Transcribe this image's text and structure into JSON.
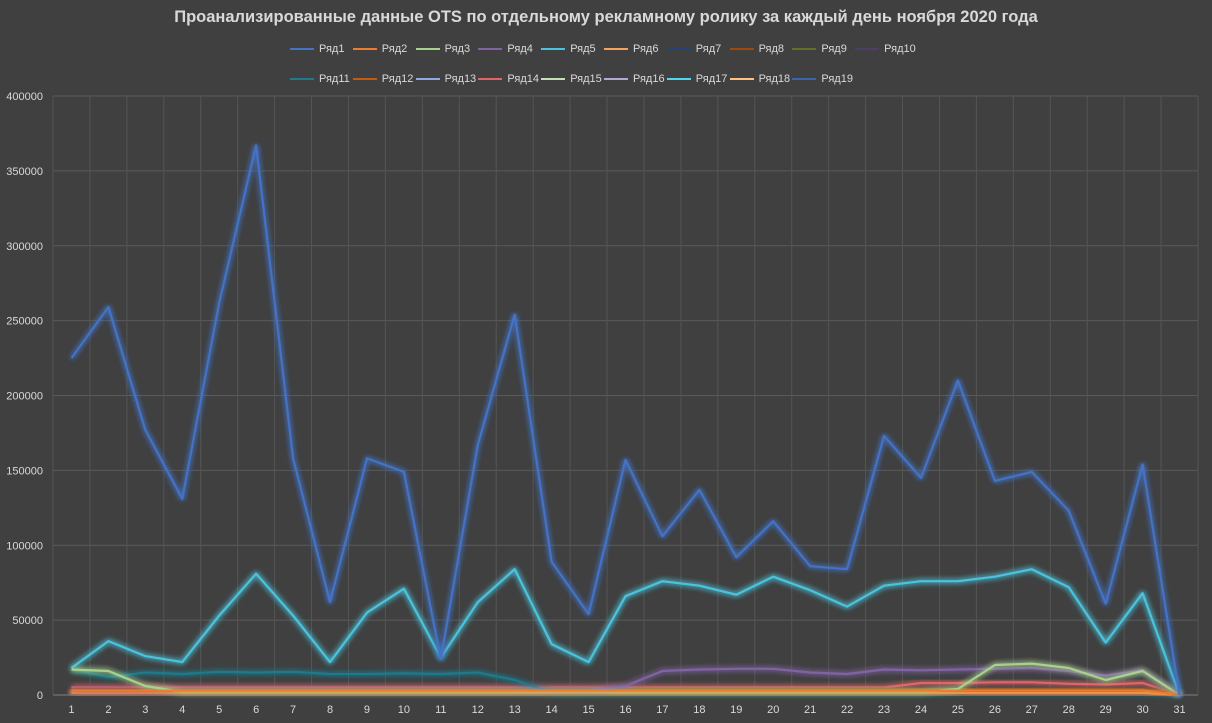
{
  "chart_data": {
    "type": "line",
    "title": "Проанализированные данные OTS по отдельному рекламному ролику за каждый день ноября 2020 года",
    "xlabel": "",
    "ylabel": "",
    "x": [
      1,
      2,
      3,
      4,
      5,
      6,
      7,
      8,
      9,
      10,
      11,
      12,
      13,
      14,
      15,
      16,
      17,
      18,
      19,
      20,
      21,
      22,
      23,
      24,
      25,
      26,
      27,
      28,
      29,
      30,
      31
    ],
    "ylim": [
      0,
      400000
    ],
    "yticks": [
      "0",
      "50000",
      "100000",
      "150000",
      "200000",
      "250000",
      "300000",
      "350000",
      "400000"
    ],
    "grid": true,
    "legend_position": "top",
    "series": [
      {
        "name": "Ряд1",
        "color": "#4472c4",
        "values": [
          225000,
          259000,
          177000,
          131000,
          262000,
          367000,
          158000,
          62000,
          158000,
          149000,
          24000,
          167000,
          254000,
          89000,
          54000,
          157000,
          106000,
          137000,
          92000,
          116000,
          86000,
          84000,
          173000,
          145000,
          210000,
          143000,
          149000,
          123000,
          61000,
          154000,
          0
        ]
      },
      {
        "name": "Ряд2",
        "color": "#ed7d31",
        "values": [
          3000,
          3000,
          3000,
          3000,
          3000,
          3000,
          3000,
          3000,
          3000,
          3000,
          3000,
          3000,
          3000,
          3000,
          3000,
          3000,
          3000,
          3000,
          3000,
          3000,
          3000,
          3000,
          3000,
          3000,
          3000,
          3000,
          3000,
          3000,
          3000,
          3000,
          0
        ]
      },
      {
        "name": "Ряд3",
        "color": "#a9d18e",
        "values": [
          17000,
          16000,
          6000,
          2000,
          2000,
          2000,
          2000,
          2000,
          2000,
          2000,
          2000,
          2000,
          2000,
          2000,
          2000,
          2000,
          2000,
          2000,
          2000,
          2000,
          2000,
          2000,
          2000,
          2000,
          4000,
          20000,
          21000,
          18000,
          10000,
          16000,
          0
        ]
      },
      {
        "name": "Ряд4",
        "color": "#8064a2",
        "values": [
          3000,
          3000,
          3000,
          3000,
          3000,
          3000,
          3000,
          3000,
          3000,
          3000,
          3000,
          3000,
          3000,
          3000,
          3000,
          6000,
          16000,
          17000,
          17500,
          17500,
          15000,
          14000,
          17000,
          16500,
          17000,
          17500,
          18000,
          16000,
          13000,
          16500,
          0
        ]
      },
      {
        "name": "Ряд5",
        "color": "#4bc3dc",
        "values": [
          18000,
          36000,
          26000,
          22000,
          53000,
          81000,
          53000,
          22000,
          55000,
          71000,
          25000,
          62000,
          84000,
          34000,
          22000,
          66000,
          76000,
          73000,
          67000,
          79000,
          70000,
          59000,
          73000,
          76000,
          76000,
          79000,
          84000,
          72000,
          35000,
          68000,
          0
        ]
      },
      {
        "name": "Ряд6",
        "color": "#f4a460",
        "values": [
          1500,
          1500,
          1500,
          1500,
          1500,
          1500,
          1500,
          1500,
          1500,
          1500,
          1500,
          1500,
          1500,
          1500,
          1500,
          1500,
          1500,
          1500,
          1500,
          1500,
          1500,
          1500,
          1500,
          1500,
          1500,
          1500,
          1500,
          1500,
          1500,
          1500,
          0
        ]
      },
      {
        "name": "Ряд7",
        "color": "#264478",
        "values": [
          1000,
          1000,
          1000,
          1000,
          1000,
          1000,
          1000,
          1000,
          1000,
          1000,
          1000,
          1000,
          1000,
          1000,
          1000,
          1000,
          1000,
          1000,
          1000,
          1000,
          1000,
          1000,
          1000,
          1000,
          1000,
          1000,
          1000,
          1000,
          1000,
          1000,
          0
        ]
      },
      {
        "name": "Ряд8",
        "color": "#9e480e",
        "values": [
          2000,
          2000,
          2000,
          2000,
          2000,
          2000,
          2000,
          2000,
          2000,
          2000,
          2000,
          2000,
          2000,
          2000,
          2000,
          2000,
          2000,
          2000,
          2000,
          2000,
          2000,
          2000,
          2000,
          2000,
          2000,
          2000,
          2000,
          2000,
          2000,
          2000,
          0
        ]
      },
      {
        "name": "Ряд9",
        "color": "#636f2d",
        "values": [
          2500,
          2500,
          2500,
          2500,
          2500,
          2500,
          2500,
          2500,
          2500,
          2500,
          2500,
          2500,
          2500,
          2500,
          2500,
          2500,
          2500,
          2500,
          2500,
          2500,
          2500,
          2500,
          2500,
          2500,
          2500,
          2500,
          2500,
          2500,
          2500,
          2500,
          0
        ]
      },
      {
        "name": "Ряд10",
        "color": "#4e3d6b",
        "values": [
          1500,
          1500,
          1500,
          1500,
          1500,
          1500,
          1500,
          1500,
          1500,
          1500,
          1500,
          1500,
          1500,
          1500,
          1500,
          1500,
          1500,
          1500,
          1500,
          1500,
          1500,
          1500,
          1500,
          1500,
          1500,
          1500,
          1500,
          1500,
          1500,
          1500,
          0
        ]
      },
      {
        "name": "Ряд11",
        "color": "#1f7a8c",
        "values": [
          17000,
          12000,
          15000,
          14000,
          15500,
          15000,
          15500,
          14000,
          14000,
          14500,
          14000,
          15000,
          10000,
          1500,
          1500,
          1500,
          1500,
          1500,
          1500,
          1500,
          1500,
          1500,
          1500,
          1500,
          1500,
          1500,
          1500,
          1500,
          1500,
          1500,
          0
        ]
      },
      {
        "name": "Ряд12",
        "color": "#c55a11",
        "values": [
          4000,
          4000,
          4000,
          4000,
          4000,
          4000,
          4000,
          4000,
          4000,
          4000,
          4000,
          4000,
          4000,
          4000,
          4000,
          4000,
          4000,
          4000,
          4000,
          4000,
          4000,
          4000,
          4000,
          4000,
          4000,
          4000,
          4000,
          4000,
          4000,
          4000,
          0
        ]
      },
      {
        "name": "Ряд13",
        "color": "#8faadc",
        "values": [
          2000,
          2000,
          2000,
          2000,
          2000,
          2000,
          2000,
          2000,
          2000,
          2000,
          2000,
          2000,
          2000,
          2000,
          2000,
          2000,
          2000,
          2000,
          2000,
          2000,
          2000,
          2000,
          2000,
          2000,
          2000,
          2000,
          2000,
          2000,
          2000,
          2000,
          0
        ]
      },
      {
        "name": "Ряд14",
        "color": "#e06666",
        "values": [
          5000,
          5000,
          5000,
          5000,
          5000,
          5000,
          5000,
          5000,
          5000,
          5000,
          5000,
          5000,
          5000,
          5000,
          5000,
          5000,
          5000,
          5000,
          5000,
          5000,
          5000,
          5000,
          5000,
          8000,
          8000,
          8500,
          8500,
          7500,
          7000,
          8000,
          0
        ]
      },
      {
        "name": "Ряд15",
        "color": "#c5e0b4",
        "values": [
          3000,
          3000,
          3000,
          3000,
          3000,
          3000,
          3000,
          3000,
          3000,
          3000,
          3000,
          3000,
          3000,
          3000,
          3000,
          3000,
          3000,
          3000,
          3000,
          3000,
          3000,
          3000,
          3000,
          3000,
          3000,
          3000,
          3000,
          3000,
          3000,
          3000,
          0
        ]
      },
      {
        "name": "Ряд16",
        "color": "#b4a7d6",
        "values": [
          2500,
          2500,
          2500,
          2500,
          2500,
          2500,
          2500,
          2500,
          2500,
          2500,
          2500,
          2500,
          2500,
          2500,
          2500,
          2500,
          2500,
          2500,
          2500,
          2500,
          2500,
          2500,
          2500,
          2500,
          2500,
          2500,
          2500,
          2500,
          2500,
          2500,
          0
        ]
      },
      {
        "name": "Ряд17",
        "color": "#4fd8f0",
        "values": [
          500,
          500,
          500,
          500,
          500,
          500,
          500,
          500,
          500,
          500,
          500,
          500,
          500,
          500,
          500,
          500,
          500,
          500,
          500,
          500,
          500,
          500,
          500,
          500,
          500,
          500,
          500,
          500,
          500,
          500,
          0
        ]
      },
      {
        "name": "Ряд18",
        "color": "#ffc080",
        "values": [
          1000,
          1000,
          1000,
          1000,
          1000,
          1000,
          1000,
          1000,
          1000,
          1000,
          1000,
          1000,
          1000,
          1000,
          1000,
          1000,
          1000,
          1000,
          1000,
          1000,
          1000,
          1000,
          1000,
          1000,
          1000,
          1000,
          1000,
          1000,
          1000,
          1000,
          0
        ]
      },
      {
        "name": "Ряд19",
        "color": "#3b64ad",
        "values": [
          1000,
          1000,
          1000,
          1000,
          1000,
          1000,
          1000,
          1000,
          1000,
          1000,
          1000,
          1000,
          1000,
          1000,
          1000,
          1000,
          1000,
          1000,
          1000,
          1000,
          1000,
          1000,
          1000,
          1000,
          1000,
          1000,
          1000,
          1000,
          1000,
          1000,
          0
        ]
      }
    ]
  }
}
